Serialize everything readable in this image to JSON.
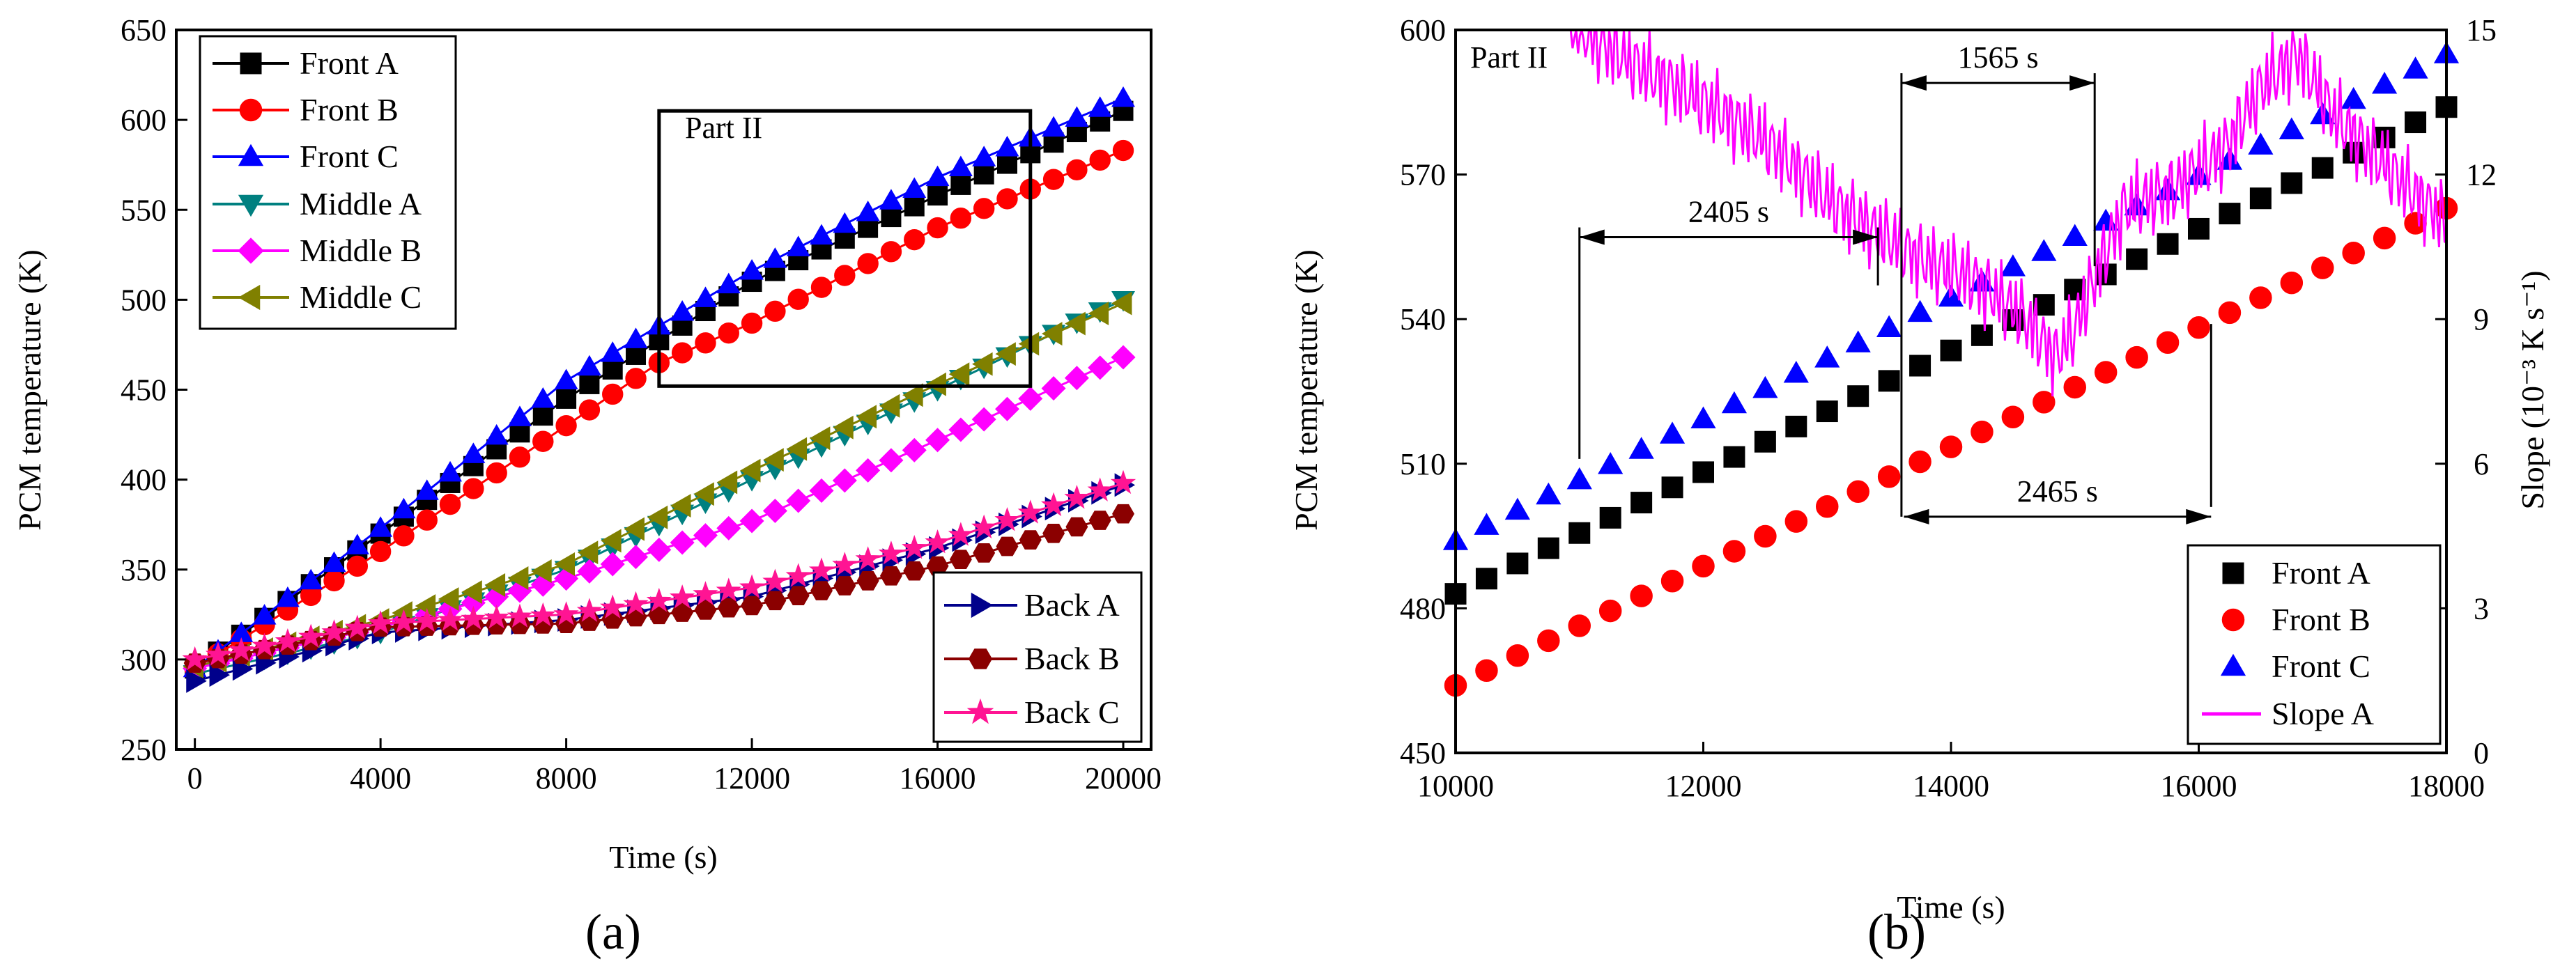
{
  "figure": {
    "panel_labels": [
      "(a)",
      "(b)"
    ]
  },
  "chart_data": [
    {
      "type": "scatter",
      "panel": "(a)",
      "xlabel": "Time (s)",
      "ylabel": "PCM temperature (K)",
      "xlim": [
        -400,
        20600
      ],
      "ylim": [
        250,
        650
      ],
      "xticks": [
        0,
        4000,
        8000,
        12000,
        16000,
        20000
      ],
      "yticks": [
        250,
        300,
        350,
        400,
        450,
        500,
        550,
        600,
        650
      ],
      "legend_upper": [
        "Front A",
        "Front B",
        "Front C",
        "Middle A",
        "Middle B",
        "Middle C"
      ],
      "legend_lower": [
        "Back A",
        "Back B",
        "Back C"
      ],
      "annotation": {
        "label": "Part II",
        "x_range": [
          10000,
          18000
        ],
        "y_range": [
          452,
          605
        ]
      },
      "series": [
        {
          "name": "Front A",
          "color": "#000000",
          "marker": "square",
          "x_start": 0,
          "x_end": 20000,
          "step": 500,
          "knots": [
            [
              0,
              295
            ],
            [
              4000,
              370
            ],
            [
              8000,
              445
            ],
            [
              12000,
              510
            ],
            [
              16000,
              558
            ],
            [
              20000,
              605
            ]
          ]
        },
        {
          "name": "Front B",
          "color": "#ff0000",
          "marker": "circle",
          "x_start": 0,
          "x_end": 20000,
          "step": 500,
          "knots": [
            [
              0,
              295
            ],
            [
              4000,
              360
            ],
            [
              8000,
              430
            ],
            [
              10000,
              465
            ],
            [
              12000,
              487
            ],
            [
              16000,
              540
            ],
            [
              20000,
              583
            ]
          ]
        },
        {
          "name": "Front C",
          "color": "#0000ff",
          "marker": "triangle-up",
          "x_start": 0,
          "x_end": 20000,
          "step": 500,
          "knots": [
            [
              0,
              295
            ],
            [
              4000,
              373
            ],
            [
              8000,
              455
            ],
            [
              12000,
              516
            ],
            [
              16000,
              568
            ],
            [
              20000,
              612
            ]
          ]
        },
        {
          "name": "Middle A",
          "color": "#008080",
          "marker": "triangle-down",
          "x_start": 0,
          "x_end": 20000,
          "step": 500,
          "knots": [
            [
              0,
              292
            ],
            [
              4000,
              315
            ],
            [
              8000,
              350
            ],
            [
              12000,
              400
            ],
            [
              16000,
              450
            ],
            [
              20000,
              500
            ]
          ]
        },
        {
          "name": "Middle B",
          "color": "#ff00ff",
          "marker": "diamond",
          "x_start": 0,
          "x_end": 20000,
          "step": 500,
          "knots": [
            [
              0,
              295
            ],
            [
              4000,
              318
            ],
            [
              8000,
              345
            ],
            [
              12000,
              377
            ],
            [
              16000,
              422
            ],
            [
              20000,
              468
            ]
          ]
        },
        {
          "name": "Middle C",
          "color": "#808000",
          "marker": "triangle-left",
          "x_start": 0,
          "x_end": 20000,
          "step": 500,
          "knots": [
            [
              0,
              296
            ],
            [
              4000,
              322
            ],
            [
              8000,
              353
            ],
            [
              12000,
              405
            ],
            [
              16000,
              453
            ],
            [
              20000,
              498
            ]
          ]
        },
        {
          "name": "Back A",
          "color": "#00008b",
          "marker": "triangle-right",
          "x_start": 0,
          "x_end": 20000,
          "step": 500,
          "knots": [
            [
              0,
              288
            ],
            [
              4000,
              315
            ],
            [
              8000,
              322
            ],
            [
              12000,
              335
            ],
            [
              16000,
              362
            ],
            [
              20000,
              397
            ]
          ]
        },
        {
          "name": "Back B",
          "color": "#8b0000",
          "marker": "hexagon",
          "x_start": 0,
          "x_end": 20000,
          "step": 500,
          "knots": [
            [
              0,
              298
            ],
            [
              4000,
              318
            ],
            [
              8000,
              320
            ],
            [
              12000,
              330
            ],
            [
              16000,
              352
            ],
            [
              20000,
              381
            ]
          ]
        },
        {
          "name": "Back C",
          "color": "#ff1493",
          "marker": "star",
          "x_start": 0,
          "x_end": 20000,
          "step": 500,
          "knots": [
            [
              0,
              300
            ],
            [
              4000,
              320
            ],
            [
              8000,
              325
            ],
            [
              12000,
              340
            ],
            [
              16000,
              365
            ],
            [
              20000,
              398
            ]
          ]
        }
      ]
    },
    {
      "type": "scatter",
      "panel": "(b)",
      "xlabel": "Time (s)",
      "ylabel": "PCM temperature (K)",
      "y2label": "Slope (10⁻³ K s⁻¹)",
      "xlim": [
        10000,
        18000
      ],
      "ylim": [
        450,
        600
      ],
      "y2lim": [
        0,
        15
      ],
      "xticks": [
        10000,
        12000,
        14000,
        16000,
        18000
      ],
      "yticks": [
        450,
        480,
        510,
        540,
        570,
        600
      ],
      "y2ticks": [
        0,
        3,
        6,
        9,
        12,
        15
      ],
      "part_label": "Part II",
      "legend": [
        "Front A",
        "Front B",
        "Front C",
        "Slope A"
      ],
      "annotations": [
        {
          "label": "2405 s",
          "x_from": 11000,
          "x_to": 13410,
          "y": 557
        },
        {
          "label": "1565 s",
          "x_from": 13600,
          "x_to": 15160,
          "y": 589
        },
        {
          "label": "2465 s",
          "x_from": 13620,
          "x_to": 16100,
          "y": 499
        }
      ],
      "series": [
        {
          "name": "Front A",
          "color": "#000000",
          "marker": "square",
          "x_start": 10000,
          "x_end": 18000,
          "step": 250,
          "knots": [
            [
              10000,
              483
            ],
            [
              18000,
              584
            ]
          ]
        },
        {
          "name": "Front B",
          "color": "#ff0000",
          "marker": "circle",
          "x_start": 10000,
          "x_end": 18000,
          "step": 250,
          "knots": [
            [
              10000,
              464
            ],
            [
              18000,
              563
            ]
          ]
        },
        {
          "name": "Front C",
          "color": "#0000ff",
          "marker": "triangle-up",
          "x_start": 10000,
          "x_end": 18000,
          "step": 250,
          "knots": [
            [
              10000,
              494
            ],
            [
              18000,
              595
            ]
          ]
        },
        {
          "name": "Slope A",
          "color": "#ff00ff",
          "axis": "y2",
          "line": true,
          "x_start": 10900,
          "x_end": 18000,
          "knots": [
            [
              10900,
              15.2
            ],
            [
              11200,
              14.7
            ],
            [
              11500,
              14.2
            ],
            [
              11800,
              13.8
            ],
            [
              12200,
              13.2
            ],
            [
              12600,
              12.5
            ],
            [
              13000,
              11.5
            ],
            [
              13400,
              10.8
            ],
            [
              13800,
              10.2
            ],
            [
              14200,
              9.8
            ],
            [
              14600,
              9.0
            ],
            [
              14850,
              8.2
            ],
            [
              15000,
              8.8
            ],
            [
              15150,
              9.8
            ],
            [
              15400,
              11.3
            ],
            [
              15800,
              11.7
            ],
            [
              16200,
              12.5
            ],
            [
              16500,
              13.8
            ],
            [
              16800,
              14.5
            ],
            [
              17100,
              13.2
            ],
            [
              17500,
              12.2
            ],
            [
              18000,
              11.0
            ]
          ]
        }
      ]
    }
  ]
}
